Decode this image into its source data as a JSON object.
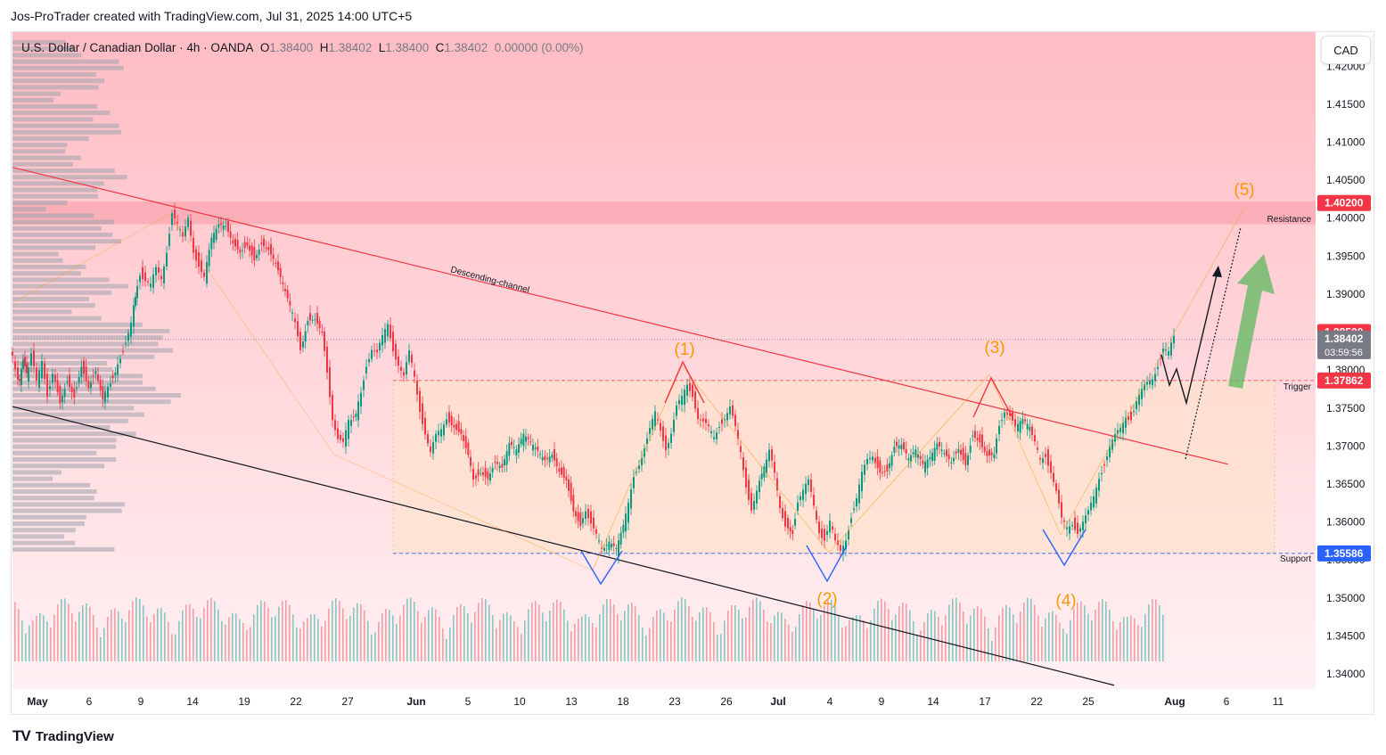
{
  "caption": "Jos-ProTrader created with TradingView.com, Jul 31, 2025 14:00 UTC+5",
  "footer": {
    "brand": "TradingView",
    "logo_icon": "tradingview-logo-icon"
  },
  "currency_button": "CAD",
  "legend": {
    "symbol": "U.S. Dollar / Canadian Dollar · 4h · OANDA",
    "o_key": "O",
    "o_val": "1.38400",
    "h_key": "H",
    "h_val": "1.38402",
    "l_key": "L",
    "l_val": "1.38400",
    "c_key": "C",
    "c_val": "1.38402",
    "change": "0.00000 (0.00%)"
  },
  "chart_data": {
    "type": "candlestick",
    "symbol": "USDCAD",
    "timeframe": "4h",
    "ylim": [
      1.338,
      1.4245
    ],
    "y_ticks": [
      "1.42000",
      "1.41500",
      "1.41000",
      "1.40500",
      "1.40000",
      "1.39500",
      "1.39000",
      "1.38500",
      "1.38000",
      "1.37500",
      "1.37000",
      "1.36500",
      "1.36000",
      "1.35500",
      "1.35000",
      "1.34500",
      "1.34000"
    ],
    "x_ticks": [
      "May",
      "6",
      "9",
      "14",
      "19",
      "22",
      "27",
      "Jun",
      "5",
      "10",
      "13",
      "18",
      "23",
      "26",
      "Jul",
      "4",
      "9",
      "14",
      "17",
      "22",
      "25",
      "Aug",
      "6",
      "11"
    ],
    "x_tick_bold": [
      "May",
      "Jun",
      "Jul",
      "Aug"
    ],
    "price_labels": [
      {
        "value": 1.402,
        "text": "1.40200",
        "color": "#f23645"
      },
      {
        "value": 1.385,
        "text": "1.38500",
        "color": "#f23645"
      },
      {
        "value": 1.38402,
        "text": "1.38402",
        "sub": "03:59:56",
        "color": "#787b86"
      },
      {
        "value": 1.37862,
        "text": "1.37862",
        "color": "#f23645"
      },
      {
        "value": 1.35586,
        "text": "1.35586",
        "color": "#2962ff"
      }
    ],
    "levels": [
      {
        "name": "Resistance",
        "value": 1.402
      },
      {
        "name": "Trigger",
        "value": 1.37862
      },
      {
        "name": "Support",
        "value": 1.35586
      }
    ],
    "annotations": {
      "channel_label": "Descending-channel",
      "waves": [
        "(1)",
        "(2)",
        "(3)",
        "(4)",
        "(5)"
      ]
    },
    "path_points": [
      [
        0,
        1.383
      ],
      [
        6,
        1.38
      ],
      [
        10,
        1.378
      ],
      [
        14,
        1.382
      ],
      [
        18,
        1.379
      ],
      [
        24,
        1.382
      ],
      [
        30,
        1.378
      ],
      [
        36,
        1.381
      ],
      [
        42,
        1.377
      ],
      [
        48,
        1.38
      ],
      [
        56,
        1.376
      ],
      [
        64,
        1.379
      ],
      [
        72,
        1.377
      ],
      [
        80,
        1.381
      ],
      [
        88,
        1.378
      ],
      [
        96,
        1.38
      ],
      [
        104,
        1.376
      ],
      [
        110,
        1.378
      ],
      [
        118,
        1.38
      ],
      [
        124,
        1.382
      ],
      [
        130,
        1.384
      ],
      [
        136,
        1.386
      ],
      [
        140,
        1.39
      ],
      [
        146,
        1.393
      ],
      [
        152,
        1.392
      ],
      [
        158,
        1.391
      ],
      [
        164,
        1.393
      ],
      [
        170,
        1.392
      ],
      [
        176,
        1.396
      ],
      [
        182,
        1.401
      ],
      [
        188,
        1.399
      ],
      [
        194,
        1.397
      ],
      [
        200,
        1.4
      ],
      [
        206,
        1.396
      ],
      [
        212,
        1.394
      ],
      [
        218,
        1.392
      ],
      [
        226,
        1.397
      ],
      [
        234,
        1.399
      ],
      [
        242,
        1.399
      ],
      [
        250,
        1.397
      ],
      [
        258,
        1.396
      ],
      [
        266,
        1.397
      ],
      [
        274,
        1.395
      ],
      [
        282,
        1.397
      ],
      [
        290,
        1.396
      ],
      [
        298,
        1.394
      ],
      [
        306,
        1.391
      ],
      [
        314,
        1.388
      ],
      [
        320,
        1.386
      ],
      [
        326,
        1.383
      ],
      [
        334,
        1.387
      ],
      [
        342,
        1.387
      ],
      [
        350,
        1.385
      ],
      [
        356,
        1.38
      ],
      [
        362,
        1.374
      ],
      [
        368,
        1.371
      ],
      [
        374,
        1.37
      ],
      [
        380,
        1.373
      ],
      [
        388,
        1.374
      ],
      [
        394,
        1.377
      ],
      [
        400,
        1.381
      ],
      [
        406,
        1.383
      ],
      [
        412,
        1.382
      ],
      [
        418,
        1.384
      ],
      [
        424,
        1.386
      ],
      [
        430,
        1.383
      ],
      [
        436,
        1.381
      ],
      [
        442,
        1.379
      ],
      [
        448,
        1.382
      ],
      [
        454,
        1.379
      ],
      [
        460,
        1.375
      ],
      [
        466,
        1.372
      ],
      [
        472,
        1.369
      ],
      [
        478,
        1.371
      ],
      [
        484,
        1.372
      ],
      [
        490,
        1.374
      ],
      [
        498,
        1.373
      ],
      [
        506,
        1.372
      ],
      [
        514,
        1.369
      ],
      [
        520,
        1.366
      ],
      [
        528,
        1.367
      ],
      [
        536,
        1.366
      ],
      [
        544,
        1.368
      ],
      [
        552,
        1.367
      ],
      [
        560,
        1.37
      ],
      [
        568,
        1.369
      ],
      [
        576,
        1.371
      ],
      [
        584,
        1.37
      ],
      [
        592,
        1.369
      ],
      [
        600,
        1.368
      ],
      [
        608,
        1.369
      ],
      [
        616,
        1.367
      ],
      [
        624,
        1.366
      ],
      [
        632,
        1.362
      ],
      [
        640,
        1.36
      ],
      [
        646,
        1.362
      ],
      [
        652,
        1.36
      ],
      [
        658,
        1.358
      ],
      [
        664,
        1.356
      ],
      [
        672,
        1.357
      ],
      [
        680,
        1.356
      ],
      [
        688,
        1.359
      ],
      [
        694,
        1.362
      ],
      [
        700,
        1.366
      ],
      [
        706,
        1.368
      ],
      [
        712,
        1.37
      ],
      [
        718,
        1.372
      ],
      [
        724,
        1.374
      ],
      [
        730,
        1.372
      ],
      [
        736,
        1.37
      ],
      [
        742,
        1.372
      ],
      [
        748,
        1.375
      ],
      [
        754,
        1.376
      ],
      [
        760,
        1.378
      ],
      [
        766,
        1.377
      ],
      [
        772,
        1.374
      ],
      [
        778,
        1.373
      ],
      [
        784,
        1.372
      ],
      [
        790,
        1.371
      ],
      [
        796,
        1.373
      ],
      [
        802,
        1.374
      ],
      [
        808,
        1.375
      ],
      [
        814,
        1.372
      ],
      [
        820,
        1.369
      ],
      [
        826,
        1.365
      ],
      [
        832,
        1.362
      ],
      [
        838,
        1.364
      ],
      [
        846,
        1.367
      ],
      [
        852,
        1.369
      ],
      [
        858,
        1.366
      ],
      [
        864,
        1.362
      ],
      [
        870,
        1.36
      ],
      [
        878,
        1.359
      ],
      [
        884,
        1.363
      ],
      [
        890,
        1.364
      ],
      [
        896,
        1.365
      ],
      [
        902,
        1.362
      ],
      [
        908,
        1.359
      ],
      [
        914,
        1.358
      ],
      [
        920,
        1.36
      ],
      [
        926,
        1.357
      ],
      [
        932,
        1.356
      ],
      [
        938,
        1.358
      ],
      [
        944,
        1.361
      ],
      [
        950,
        1.363
      ],
      [
        956,
        1.366
      ],
      [
        962,
        1.368
      ],
      [
        968,
        1.369
      ],
      [
        976,
        1.367
      ],
      [
        984,
        1.367
      ],
      [
        992,
        1.37
      ],
      [
        1000,
        1.37
      ],
      [
        1008,
        1.368
      ],
      [
        1016,
        1.369
      ],
      [
        1024,
        1.367
      ],
      [
        1032,
        1.368
      ],
      [
        1040,
        1.37
      ],
      [
        1048,
        1.369
      ],
      [
        1056,
        1.368
      ],
      [
        1064,
        1.37
      ],
      [
        1072,
        1.368
      ],
      [
        1080,
        1.372
      ],
      [
        1088,
        1.371
      ],
      [
        1096,
        1.369
      ],
      [
        1104,
        1.369
      ],
      [
        1110,
        1.373
      ],
      [
        1116,
        1.375
      ],
      [
        1122,
        1.374
      ],
      [
        1128,
        1.372
      ],
      [
        1136,
        1.373
      ],
      [
        1144,
        1.372
      ],
      [
        1150,
        1.37
      ],
      [
        1156,
        1.368
      ],
      [
        1162,
        1.369
      ],
      [
        1168,
        1.367
      ],
      [
        1174,
        1.364
      ],
      [
        1180,
        1.36
      ],
      [
        1186,
        1.359
      ],
      [
        1192,
        1.36
      ],
      [
        1198,
        1.359
      ],
      [
        1204,
        1.36
      ],
      [
        1210,
        1.361
      ],
      [
        1216,
        1.363
      ],
      [
        1222,
        1.366
      ],
      [
        1228,
        1.368
      ],
      [
        1234,
        1.37
      ],
      [
        1240,
        1.371
      ],
      [
        1246,
        1.372
      ],
      [
        1252,
        1.374
      ],
      [
        1258,
        1.374
      ],
      [
        1264,
        1.376
      ],
      [
        1270,
        1.377
      ],
      [
        1276,
        1.378
      ],
      [
        1282,
        1.379
      ],
      [
        1288,
        1.381
      ],
      [
        1294,
        1.383
      ],
      [
        1300,
        1.382
      ],
      [
        1306,
        1.384
      ]
    ]
  }
}
